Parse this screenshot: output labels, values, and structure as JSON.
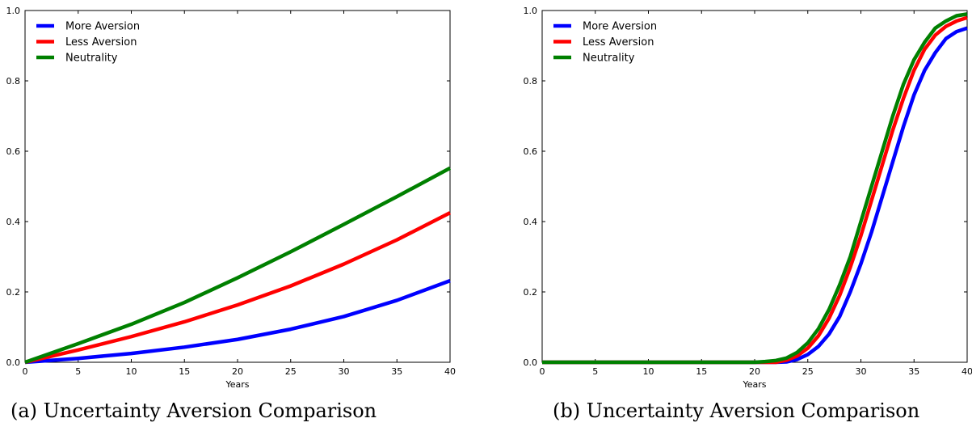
{
  "chart_data": [
    {
      "type": "line",
      "caption": "(a) Uncertainty Aversion Comparison",
      "xlabel": "Years",
      "ylabel": "",
      "xlim": [
        0,
        40
      ],
      "ylim": [
        0,
        1.0
      ],
      "xticks": [
        "0",
        "5",
        "10",
        "15",
        "20",
        "25",
        "30",
        "35",
        "40"
      ],
      "yticks": [
        "0.0",
        "0.2",
        "0.4",
        "0.6",
        "0.8",
        "1.0"
      ],
      "grid": false,
      "legend_position": "top-left",
      "x": [
        0,
        5,
        10,
        15,
        20,
        25,
        30,
        35,
        40
      ],
      "series": [
        {
          "name": "More Aversion",
          "color": "#0000ff",
          "values": [
            0,
            0.011,
            0.025,
            0.043,
            0.065,
            0.094,
            0.13,
            0.176,
            0.232
          ]
        },
        {
          "name": "Less Aversion",
          "color": "#ff0000",
          "values": [
            0,
            0.035,
            0.073,
            0.115,
            0.163,
            0.217,
            0.279,
            0.348,
            0.425
          ]
        },
        {
          "name": "Neutrality",
          "color": "#008000",
          "values": [
            0,
            0.053,
            0.108,
            0.17,
            0.24,
            0.314,
            0.392,
            0.471,
            0.552
          ]
        }
      ]
    },
    {
      "type": "line",
      "caption": "(b) Uncertainty Aversion Comparison",
      "xlabel": "Years",
      "ylabel": "",
      "xlim": [
        0,
        40
      ],
      "ylim": [
        0,
        1.0
      ],
      "xticks": [
        "0",
        "5",
        "10",
        "15",
        "20",
        "25",
        "30",
        "35",
        "40"
      ],
      "yticks": [
        "0.0",
        "0.2",
        "0.4",
        "0.6",
        "0.8",
        "1.0"
      ],
      "grid": false,
      "legend_position": "top-left",
      "x": [
        0,
        5,
        10,
        15,
        20,
        21,
        22,
        23,
        24,
        25,
        26,
        27,
        28,
        29,
        30,
        31,
        32,
        33,
        34,
        35,
        36,
        37,
        38,
        39,
        40
      ],
      "series": [
        {
          "name": "More Aversion",
          "color": "#0000ff",
          "values": [
            0,
            0,
            0,
            0,
            0,
            0,
            0,
            0.001,
            0.008,
            0.022,
            0.045,
            0.08,
            0.13,
            0.2,
            0.28,
            0.37,
            0.47,
            0.57,
            0.67,
            0.76,
            0.83,
            0.88,
            0.92,
            0.94,
            0.95
          ]
        },
        {
          "name": "Less Aversion",
          "color": "#ff0000",
          "values": [
            0,
            0,
            0,
            0,
            0,
            0,
            0,
            0.006,
            0.018,
            0.04,
            0.075,
            0.125,
            0.19,
            0.27,
            0.36,
            0.46,
            0.56,
            0.66,
            0.75,
            0.83,
            0.89,
            0.93,
            0.955,
            0.97,
            0.98
          ]
        },
        {
          "name": "Neutrality",
          "color": "#008000",
          "values": [
            0,
            0,
            0,
            0,
            0,
            0.002,
            0.005,
            0.012,
            0.028,
            0.055,
            0.095,
            0.15,
            0.22,
            0.3,
            0.4,
            0.5,
            0.6,
            0.7,
            0.79,
            0.86,
            0.91,
            0.95,
            0.97,
            0.985,
            0.99
          ]
        }
      ]
    }
  ]
}
